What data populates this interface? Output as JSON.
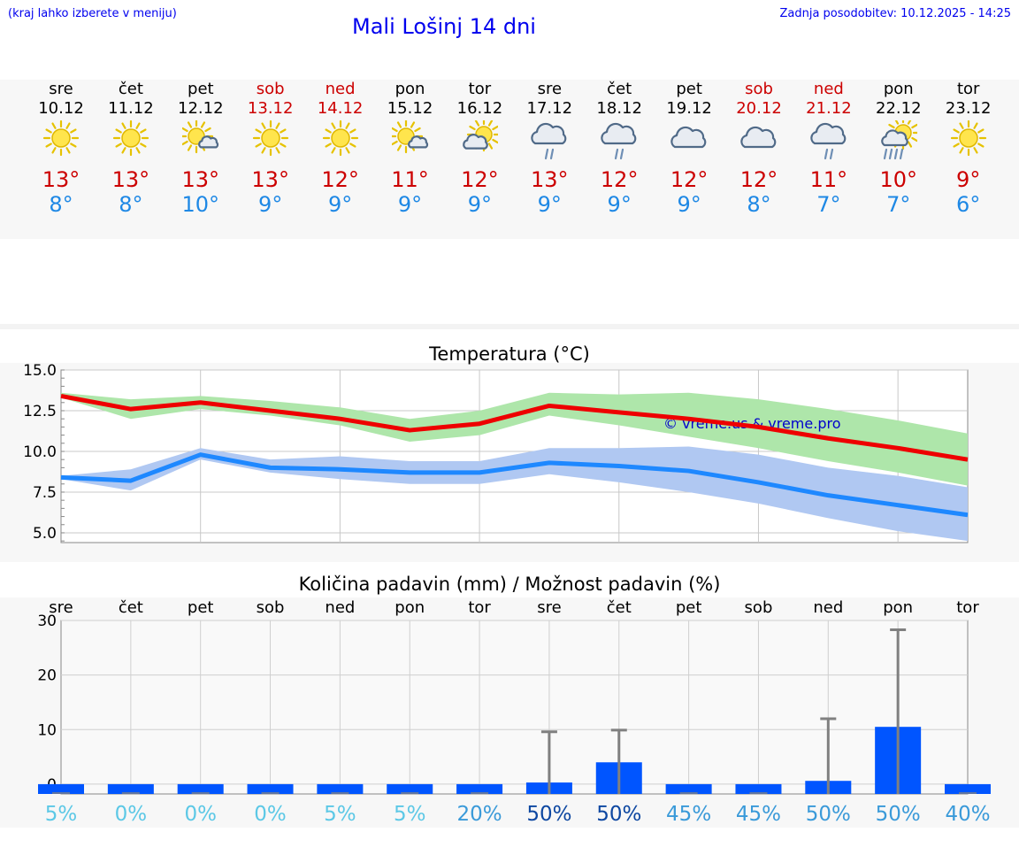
{
  "header": {
    "hint": "(kraj lahko izberete v meniju)",
    "title": "Mali Lošinj 14 dni",
    "updated": "Zadnja posodobitev: 10.12.2025 - 14:25"
  },
  "days": [
    {
      "name": "sre",
      "date": "10.12",
      "hi": "13°",
      "lo": "8°",
      "icon": "sun-icon",
      "weekend": false
    },
    {
      "name": "čet",
      "date": "11.12",
      "hi": "13°",
      "lo": "8°",
      "icon": "sun-icon",
      "weekend": false
    },
    {
      "name": "pet",
      "date": "12.12",
      "hi": "13°",
      "lo": "10°",
      "icon": "sun-cloud-icon",
      "weekend": false
    },
    {
      "name": "sob",
      "date": "13.12",
      "hi": "13°",
      "lo": "9°",
      "icon": "sun-icon",
      "weekend": true
    },
    {
      "name": "ned",
      "date": "14.12",
      "hi": "12°",
      "lo": "9°",
      "icon": "sun-icon",
      "weekend": true
    },
    {
      "name": "pon",
      "date": "15.12",
      "hi": "11°",
      "lo": "9°",
      "icon": "sun-cloud-icon",
      "weekend": false
    },
    {
      "name": "tor",
      "date": "16.12",
      "hi": "12°",
      "lo": "9°",
      "icon": "cloud-sun-icon",
      "weekend": false
    },
    {
      "name": "sre",
      "date": "17.12",
      "hi": "13°",
      "lo": "9°",
      "icon": "cloud-rain-icon",
      "weekend": false
    },
    {
      "name": "čet",
      "date": "18.12",
      "hi": "12°",
      "lo": "9°",
      "icon": "cloud-rain-icon",
      "weekend": false
    },
    {
      "name": "pet",
      "date": "19.12",
      "hi": "12°",
      "lo": "9°",
      "icon": "cloud-icon",
      "weekend": false
    },
    {
      "name": "sob",
      "date": "20.12",
      "hi": "12°",
      "lo": "8°",
      "icon": "cloud-icon",
      "weekend": true
    },
    {
      "name": "ned",
      "date": "21.12",
      "hi": "11°",
      "lo": "7°",
      "icon": "cloud-rain-icon",
      "weekend": true
    },
    {
      "name": "pon",
      "date": "22.12",
      "hi": "10°",
      "lo": "7°",
      "icon": "sun-rain-icon",
      "weekend": false
    },
    {
      "name": "tor",
      "date": "23.12",
      "hi": "9°",
      "lo": "6°",
      "icon": "sun-icon",
      "weekend": false
    }
  ],
  "colors": {
    "max_line": "#ee0000",
    "max_band": "#aee6aa",
    "min_line": "#1e88ff",
    "min_band": "#b0c8f2",
    "bar": "#0055ff",
    "whisker": "#808080",
    "watermark": "#0000cc"
  },
  "chart_data": [
    {
      "type": "line",
      "title": "Temperatura (°C)",
      "watermark": "© vreme.us & vreme.pro",
      "ylim": [
        4.4,
        15.0
      ],
      "yticks": [
        "15.0",
        "12.5",
        "10.0",
        "7.5",
        "5.0"
      ],
      "ytick_values": [
        15.0,
        12.5,
        10.0,
        7.5,
        5.0
      ],
      "x": [
        0,
        1,
        2,
        3,
        4,
        5,
        6,
        7,
        8,
        9,
        10,
        11,
        12,
        13
      ],
      "series": [
        {
          "name": "max",
          "values": [
            13.4,
            12.6,
            13.0,
            12.5,
            12.0,
            11.3,
            11.7,
            12.8,
            12.4,
            12.0,
            11.5,
            10.8,
            10.2,
            9.5
          ],
          "band_low": [
            13.3,
            12.0,
            12.6,
            12.2,
            11.6,
            10.6,
            11.0,
            12.2,
            11.6,
            10.9,
            10.2,
            9.4,
            8.7,
            7.9
          ],
          "band_high": [
            13.6,
            13.2,
            13.4,
            13.1,
            12.7,
            12.0,
            12.5,
            13.6,
            13.5,
            13.6,
            13.2,
            12.6,
            11.9,
            11.1
          ]
        },
        {
          "name": "min",
          "values": [
            8.4,
            8.2,
            9.8,
            9.0,
            8.9,
            8.7,
            8.7,
            9.3,
            9.1,
            8.8,
            8.1,
            7.3,
            6.7,
            6.1
          ],
          "band_low": [
            8.3,
            7.6,
            9.5,
            8.7,
            8.3,
            8.0,
            8.0,
            8.6,
            8.1,
            7.5,
            6.8,
            5.9,
            5.1,
            4.5
          ],
          "band_high": [
            8.5,
            8.9,
            10.2,
            9.5,
            9.7,
            9.4,
            9.4,
            10.2,
            10.2,
            10.3,
            9.8,
            9.0,
            8.5,
            7.8
          ]
        }
      ]
    },
    {
      "type": "bar",
      "title": "Količina padavin (mm) / Možnost padavin (%)",
      "categories": [
        "sre",
        "čet",
        "pet",
        "sob",
        "ned",
        "pon",
        "tor",
        "sre",
        "čet",
        "pet",
        "sob",
        "ned",
        "pon",
        "tor"
      ],
      "ylim": [
        -1.8,
        30
      ],
      "yticks": [
        "30",
        "20",
        "10",
        "0"
      ],
      "ytick_values": [
        30,
        20,
        10,
        0
      ],
      "values": [
        0,
        0,
        0,
        0,
        0,
        0,
        0,
        0.3,
        4.0,
        0,
        0,
        0.6,
        10.5,
        0
      ],
      "whisker_max": [
        0,
        0,
        0,
        0,
        0,
        0,
        0,
        9.6,
        9.9,
        0,
        0,
        12.0,
        28.3,
        0
      ],
      "probability": [
        "5%",
        "0%",
        "0%",
        "0%",
        "5%",
        "5%",
        "20%",
        "50%",
        "50%",
        "45%",
        "45%",
        "50%",
        "50%",
        "40%"
      ],
      "probability_colors": [
        "#5cc8e6",
        "#5cc8e6",
        "#5cc8e6",
        "#5cc8e6",
        "#5cc8e6",
        "#5cc8e6",
        "#3a9ad9",
        "#0d47a1",
        "#0d47a1",
        "#3a9ad9",
        "#3a9ad9",
        "#3a9ad9",
        "#3a9ad9",
        "#3a9ad9"
      ]
    }
  ]
}
